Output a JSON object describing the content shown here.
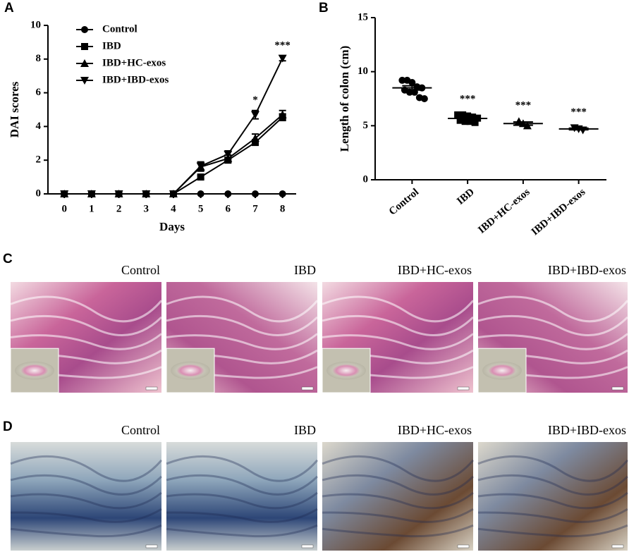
{
  "chart_data": [
    {
      "type": "line",
      "panel": "A",
      "ylabel": "DAI scores",
      "xlabel": "Days",
      "x": [
        0,
        1,
        2,
        3,
        4,
        5,
        6,
        7,
        8
      ],
      "xlim": [
        -0.6,
        8.5
      ],
      "xticks": [
        0,
        1,
        2,
        3,
        4,
        5,
        6,
        7,
        8
      ],
      "ylim": [
        0,
        10
      ],
      "yticks": [
        0,
        2,
        4,
        6,
        8,
        10
      ],
      "legend": "upper left",
      "series": [
        {
          "name": "Control",
          "marker": "circle",
          "color": "#000000",
          "values": [
            0,
            0,
            0,
            0,
            0,
            0,
            0,
            0,
            0
          ],
          "errors": [
            0,
            0,
            0,
            0,
            0,
            0,
            0,
            0,
            0
          ]
        },
        {
          "name": "IBD",
          "marker": "square",
          "color": "#000000",
          "values": [
            0,
            0,
            0,
            0,
            0,
            1.0,
            2.0,
            3.05,
            4.55
          ],
          "errors": [
            0,
            0,
            0,
            0,
            0,
            0.1,
            0.1,
            0.15,
            0.2
          ]
        },
        {
          "name": "IBD+HC-exos",
          "marker": "triangle-up",
          "color": "#000000",
          "values": [
            0,
            0,
            0,
            0,
            0,
            1.6,
            2.1,
            3.3,
            4.7
          ],
          "errors": [
            0,
            0,
            0,
            0,
            0,
            0.25,
            0.2,
            0.25,
            0.25
          ]
        },
        {
          "name": "IBD+IBD-exos",
          "marker": "triangle-down",
          "color": "#000000",
          "values": [
            0,
            0,
            0,
            0,
            0,
            1.65,
            2.35,
            4.7,
            8.05
          ],
          "errors": [
            0,
            0,
            0,
            0,
            0,
            0.25,
            0.2,
            0.25,
            0.15
          ]
        }
      ],
      "annotations": [
        {
          "x": 7,
          "text": "*"
        },
        {
          "x": 8,
          "text": "***"
        }
      ]
    },
    {
      "type": "dot",
      "panel": "B",
      "ylabel": "Length of colon (cm)",
      "categories": [
        "Control",
        "IBD",
        "IBD+HC-exos",
        "IBD+IBD-exos"
      ],
      "ylim": [
        0,
        15
      ],
      "yticks": [
        0,
        5,
        10,
        15
      ],
      "color": "#000000",
      "groups": [
        {
          "marker": "circle",
          "values": [
            9.2,
            9.2,
            9.0,
            8.6,
            8.5,
            8.3,
            8.1,
            8.1,
            7.6,
            7.5
          ],
          "mean": 8.5,
          "error": 0.2,
          "significance": null
        },
        {
          "marker": "square",
          "values": [
            6.0,
            6.0,
            5.9,
            5.8,
            5.7,
            5.5,
            5.4,
            5.4,
            5.3
          ],
          "mean": 5.67,
          "error": 0.1,
          "significance": "***"
        },
        {
          "marker": "triangle-up",
          "values": [
            5.4,
            5.2,
            5.0
          ],
          "mean": 5.2,
          "error": 0.15,
          "significance": "***"
        },
        {
          "marker": "triangle-down",
          "values": [
            4.8,
            4.7,
            4.6
          ],
          "mean": 4.7,
          "error": 0.08,
          "significance": "***"
        }
      ]
    }
  ],
  "panels": [
    {
      "label": "C",
      "images": [
        "Control",
        "IBD",
        "IBD+HC-exos",
        "IBD+IBD-exos"
      ]
    },
    {
      "label": "D",
      "images": [
        "Control",
        "IBD",
        "IBD+HC-exos",
        "IBD+IBD-exos"
      ]
    }
  ]
}
